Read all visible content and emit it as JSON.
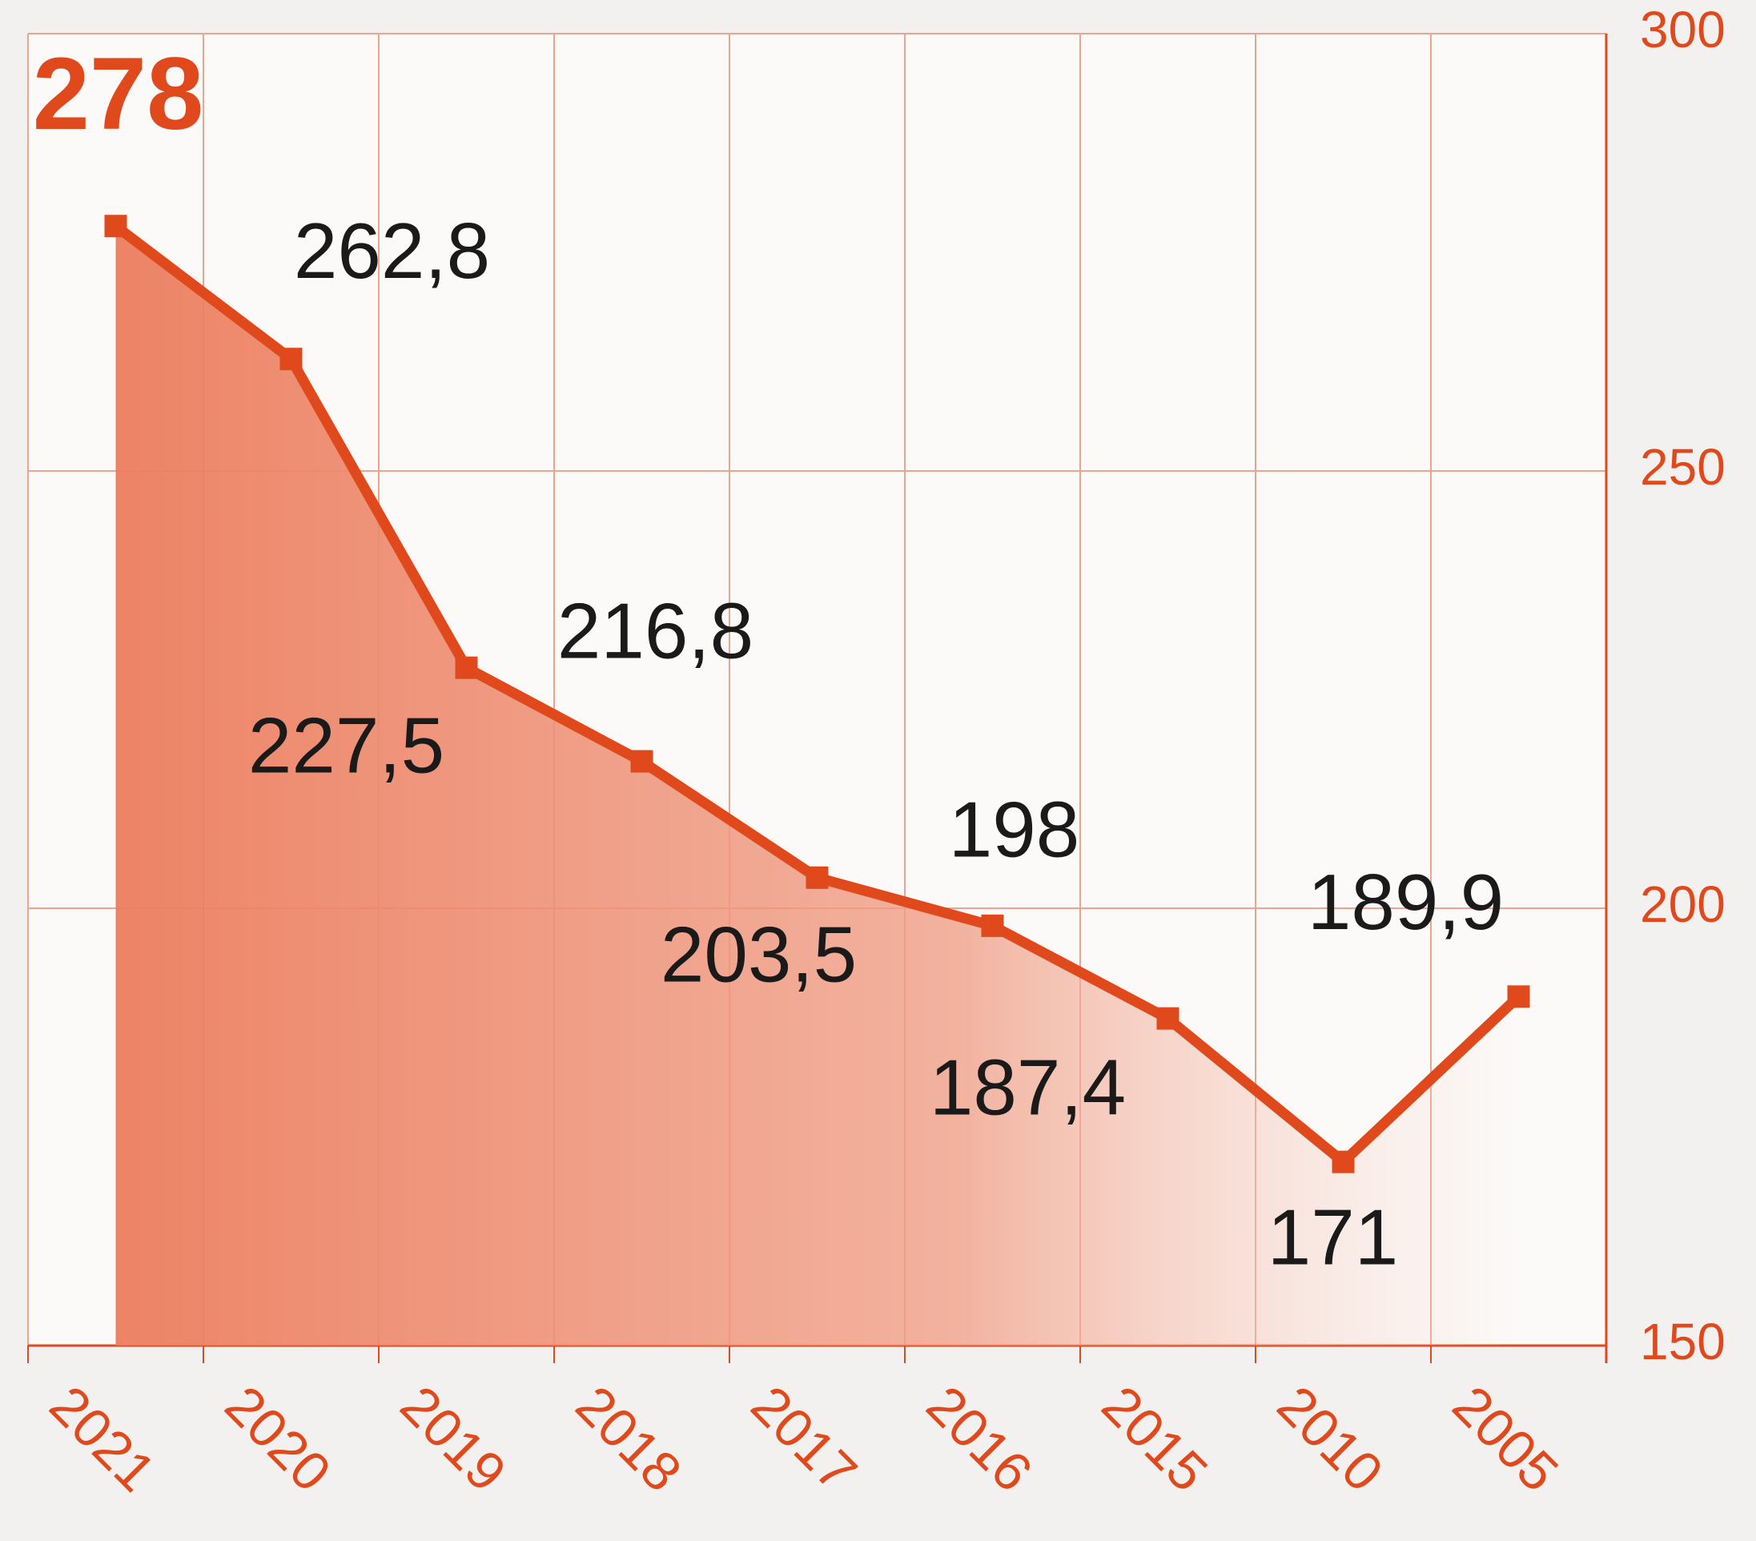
{
  "chart_data": {
    "type": "line",
    "categories": [
      "2021",
      "2020",
      "2019",
      "2018",
      "2017",
      "2016",
      "2015",
      "2010",
      "2005"
    ],
    "values": [
      278,
      262.8,
      227.5,
      216.8,
      203.5,
      198,
      187.4,
      171,
      189.9
    ],
    "value_labels": [
      "278",
      "262,8",
      "227,5",
      "216,8",
      "203,5",
      "198",
      "187,4",
      "171",
      "189,9"
    ],
    "color": "#e0491c",
    "ylim": [
      150,
      300
    ],
    "yticks": [
      150,
      200,
      250,
      300
    ],
    "grid": true
  }
}
